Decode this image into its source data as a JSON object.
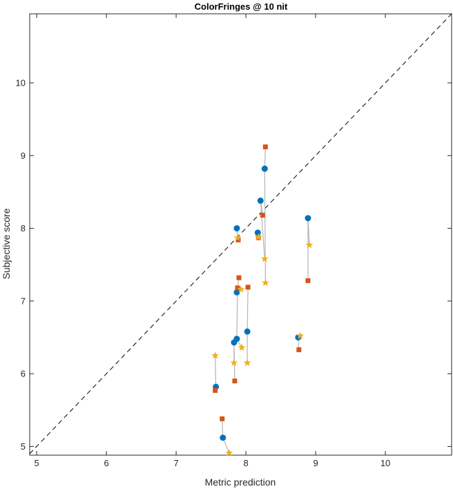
{
  "chart_data": {
    "type": "scatter",
    "title": "ColorFringes @ 10 nit",
    "xlabel": "Metric prediction",
    "ylabel": "Subjective score",
    "xlim": [
      4.9,
      10.95
    ],
    "ylim": [
      4.88,
      10.95
    ],
    "xticks": [
      5,
      6,
      7,
      8,
      9,
      10
    ],
    "yticks": [
      5,
      6,
      7,
      8,
      9,
      10
    ],
    "grid": false,
    "legend": "none",
    "identity_line": {
      "style": "dashed",
      "color": "#000000"
    },
    "connector_color": "#b4b4b4",
    "series": [
      {
        "marker": "circle",
        "color": "#0072bd",
        "points": [
          {
            "x": 7.57,
            "y": 5.82
          },
          {
            "x": 7.67,
            "y": 5.12
          },
          {
            "x": 7.83,
            "y": 6.43
          },
          {
            "x": 7.87,
            "y": 6.48
          },
          {
            "x": 8.02,
            "y": 6.58
          },
          {
            "x": 7.87,
            "y": 7.12
          },
          {
            "x": 7.87,
            "y": 8.0
          },
          {
            "x": 8.17,
            "y": 7.94
          },
          {
            "x": 8.21,
            "y": 8.38
          },
          {
            "x": 8.27,
            "y": 8.82
          },
          {
            "x": 8.75,
            "y": 6.5
          },
          {
            "x": 8.89,
            "y": 8.14
          }
        ]
      },
      {
        "marker": "square",
        "color": "#d95319",
        "points": [
          {
            "x": 7.56,
            "y": 5.77
          },
          {
            "x": 7.66,
            "y": 5.38
          },
          {
            "x": 7.84,
            "y": 5.9
          },
          {
            "x": 7.88,
            "y": 7.18
          },
          {
            "x": 8.03,
            "y": 7.19
          },
          {
            "x": 7.9,
            "y": 7.32
          },
          {
            "x": 7.89,
            "y": 7.84
          },
          {
            "x": 8.18,
            "y": 7.87
          },
          {
            "x": 8.24,
            "y": 8.18
          },
          {
            "x": 8.28,
            "y": 9.12
          },
          {
            "x": 8.76,
            "y": 6.33
          },
          {
            "x": 8.89,
            "y": 7.28
          }
        ]
      },
      {
        "marker": "star",
        "color": "#edb120",
        "points": [
          {
            "x": 7.56,
            "y": 6.25
          },
          {
            "x": 7.76,
            "y": 4.91
          },
          {
            "x": 7.83,
            "y": 6.15
          },
          {
            "x": 7.94,
            "y": 6.36
          },
          {
            "x": 8.02,
            "y": 6.15
          },
          {
            "x": 7.93,
            "y": 7.16
          },
          {
            "x": 7.88,
            "y": 7.87
          },
          {
            "x": 8.18,
            "y": 7.88
          },
          {
            "x": 8.27,
            "y": 7.58
          },
          {
            "x": 8.28,
            "y": 7.25
          },
          {
            "x": 8.78,
            "y": 6.52
          },
          {
            "x": 8.91,
            "y": 7.77
          }
        ]
      }
    ]
  }
}
